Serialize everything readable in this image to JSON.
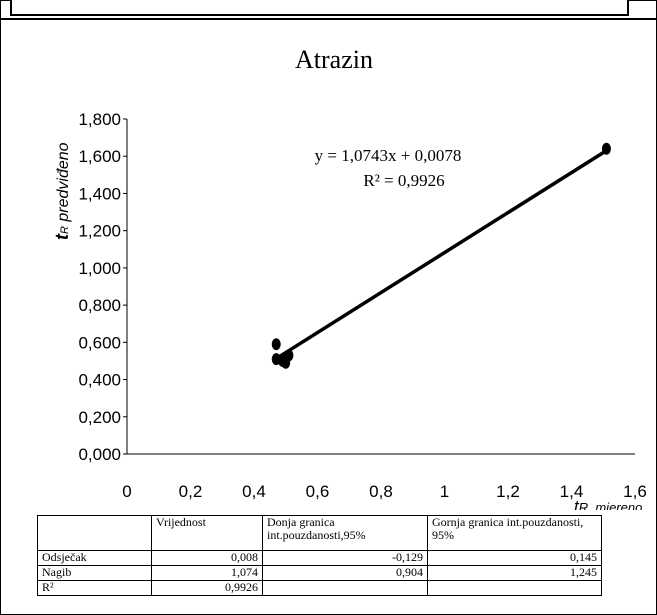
{
  "chart_data": {
    "type": "scatter",
    "title": "Atrazin",
    "ylabel_main": "t",
    "ylabel_sub": "R",
    "ylabel_rest": " predviđeno",
    "xlabel_main": "t",
    "xlabel_rest": "R, mjereno",
    "xlim": [
      0,
      1.6
    ],
    "ylim": [
      0,
      1.8
    ],
    "x_ticks": [
      "0",
      "0,2",
      "0,4",
      "0,6",
      "0,8",
      "1",
      "1,2",
      "1,4",
      "1,6"
    ],
    "y_ticks": [
      "0,000",
      "0,200",
      "0,400",
      "0,600",
      "0,800",
      "1,000",
      "1,200",
      "1,400",
      "1,600",
      "1,800"
    ],
    "points": [
      {
        "x": 0.47,
        "y": 0.59
      },
      {
        "x": 0.47,
        "y": 0.51
      },
      {
        "x": 0.49,
        "y": 0.5
      },
      {
        "x": 0.5,
        "y": 0.49
      },
      {
        "x": 0.51,
        "y": 0.53
      },
      {
        "x": 1.51,
        "y": 1.64
      }
    ],
    "trendline": {
      "x_start": 0.47,
      "x_end": 1.51,
      "slope": 1.0743,
      "intercept": 0.0078
    },
    "equation": "y = 1,0743x + 0,0078",
    "r2_label": "R² = 0,9926",
    "grid": false,
    "legend": "none"
  },
  "table": {
    "headers": [
      "",
      "Vrijednost",
      "Donja granica int.pouzdanosti,95%",
      "Gornja granica int.pouzdanosti, 95%"
    ],
    "rows": [
      [
        "Odsječak",
        "0,008",
        "-0,129",
        "0,145"
      ],
      [
        "Nagib",
        "1,074",
        "0,904",
        "1,245"
      ],
      [
        "R²",
        "0,9926",
        "",
        ""
      ]
    ]
  }
}
